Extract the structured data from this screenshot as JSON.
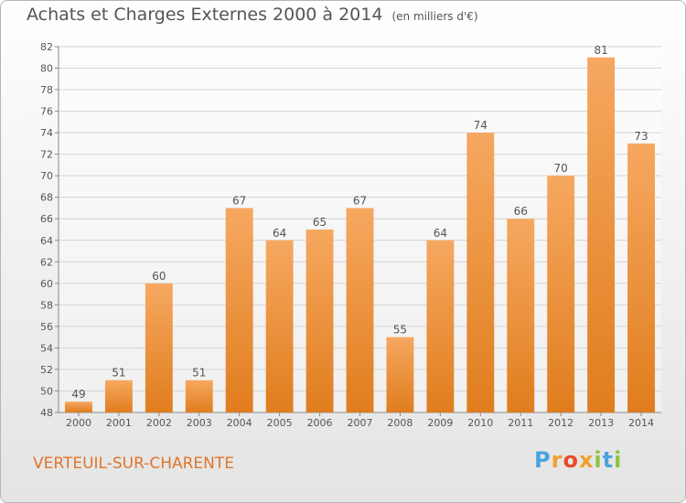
{
  "title": "Achats et Charges Externes 2000 à 2014",
  "unit": "(en milliers d'€)",
  "commune": "VERTEUIL-SUR-CHARENTE",
  "brand": {
    "letters": [
      "P",
      "r",
      "o",
      "x",
      "i",
      "t",
      "i"
    ],
    "colors": [
      "#4aa3df",
      "#f2a02c",
      "#e84a2b",
      "#f2a02c",
      "#8cc63f",
      "#4aa3df",
      "#8cc63f"
    ]
  },
  "colors": {
    "bar_light": "#f6a860",
    "bar_dark": "#e07d1e",
    "text": "#555555",
    "commune": "#e0752a"
  },
  "chart_data": {
    "type": "bar",
    "categories": [
      "2000",
      "2001",
      "2002",
      "2003",
      "2004",
      "2005",
      "2006",
      "2007",
      "2008",
      "2009",
      "2010",
      "2011",
      "2012",
      "2013",
      "2014"
    ],
    "values": [
      49,
      51,
      60,
      51,
      67,
      64,
      65,
      67,
      55,
      64,
      74,
      66,
      70,
      81,
      73
    ],
    "ylim": [
      48,
      82
    ],
    "yticks": [
      "48",
      "50",
      "52",
      "54",
      "56",
      "58",
      "60",
      "62",
      "64",
      "66",
      "68",
      "70",
      "72",
      "74",
      "76",
      "78",
      "80",
      "82"
    ],
    "grid": true,
    "xlabel": "",
    "ylabel": ""
  }
}
